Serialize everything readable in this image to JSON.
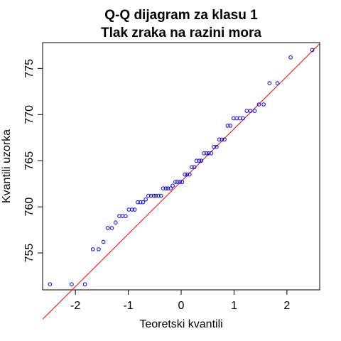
{
  "chart_data": {
    "type": "scatter",
    "title": "Q-Q dijagram za klasu 1",
    "subtitle": "Tlak zraka na razini mora",
    "xlabel": "Teoretski kvantili",
    "ylabel": "Kvantili uzorka",
    "xlim": [
      -2.62,
      2.62
    ],
    "ylim": [
      751.0,
      777.8
    ],
    "x_ticks": [
      -2,
      -1,
      0,
      1,
      2
    ],
    "y_ticks": [
      755,
      760,
      765,
      770,
      775
    ],
    "grid": false,
    "legend": "none",
    "point_color": "#0000ff",
    "line_color": "#ff0000",
    "reference_line": {
      "intercept": 762.75,
      "slope": 5.7
    },
    "series": [
      {
        "values": [
          [
            -2.48,
            751.6
          ],
          [
            -2.07,
            751.6
          ],
          [
            -1.82,
            751.6
          ],
          [
            -1.67,
            755.4
          ],
          [
            -1.56,
            755.4
          ],
          [
            -1.47,
            756.2
          ],
          [
            -1.39,
            757.7
          ],
          [
            -1.31,
            757.7
          ],
          [
            -1.24,
            758.3
          ],
          [
            -1.17,
            759.0
          ],
          [
            -1.11,
            759.0
          ],
          [
            -1.05,
            759.0
          ],
          [
            -0.99,
            759.7
          ],
          [
            -0.93,
            759.7
          ],
          [
            -0.88,
            759.7
          ],
          [
            -0.82,
            760.5
          ],
          [
            -0.77,
            760.5
          ],
          [
            -0.72,
            760.5
          ],
          [
            -0.67,
            760.8
          ],
          [
            -0.62,
            761.2
          ],
          [
            -0.57,
            761.2
          ],
          [
            -0.52,
            761.2
          ],
          [
            -0.48,
            761.2
          ],
          [
            -0.43,
            761.2
          ],
          [
            -0.38,
            761.2
          ],
          [
            -0.34,
            762.0
          ],
          [
            -0.29,
            762.0
          ],
          [
            -0.25,
            762.0
          ],
          [
            -0.2,
            762.0
          ],
          [
            -0.16,
            762.3
          ],
          [
            -0.11,
            762.7
          ],
          [
            -0.07,
            762.7
          ],
          [
            -0.02,
            762.7
          ],
          [
            0.02,
            762.7
          ],
          [
            0.07,
            763.5
          ],
          [
            0.11,
            763.5
          ],
          [
            0.16,
            763.5
          ],
          [
            0.2,
            764.3
          ],
          [
            0.25,
            764.3
          ],
          [
            0.29,
            765.0
          ],
          [
            0.34,
            765.0
          ],
          [
            0.38,
            765.0
          ],
          [
            0.43,
            765.8
          ],
          [
            0.48,
            765.8
          ],
          [
            0.52,
            765.8
          ],
          [
            0.57,
            765.8
          ],
          [
            0.62,
            766.5
          ],
          [
            0.67,
            766.5
          ],
          [
            0.72,
            767.3
          ],
          [
            0.77,
            767.3
          ],
          [
            0.82,
            767.3
          ],
          [
            0.88,
            768.8
          ],
          [
            0.93,
            768.8
          ],
          [
            0.99,
            769.6
          ],
          [
            1.05,
            769.6
          ],
          [
            1.11,
            769.6
          ],
          [
            1.17,
            769.6
          ],
          [
            1.24,
            770.4
          ],
          [
            1.31,
            770.4
          ],
          [
            1.39,
            770.4
          ],
          [
            1.47,
            771.1
          ],
          [
            1.56,
            771.1
          ],
          [
            1.67,
            773.4
          ],
          [
            1.82,
            773.4
          ],
          [
            2.07,
            776.2
          ],
          [
            2.48,
            777.0
          ]
        ]
      }
    ]
  }
}
